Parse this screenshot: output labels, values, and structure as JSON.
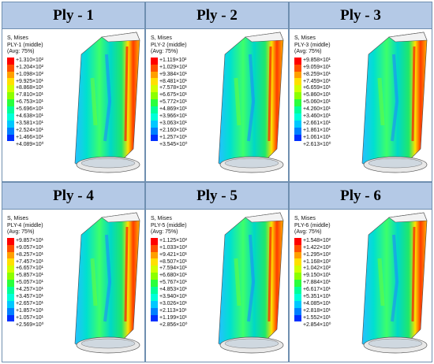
{
  "colormap": [
    "#ff0000",
    "#ff4f00",
    "#ff9f00",
    "#ffe000",
    "#d2ff00",
    "#8cff00",
    "#2aff3d",
    "#00ff9a",
    "#00ffd9",
    "#00c8ff",
    "#0080ff",
    "#0030ff"
  ],
  "legend_header": [
    "S, Mises",
    "(Avg: 75%)"
  ],
  "panels": [
    {
      "title": "Ply - 1",
      "ply_label": "PLY-1 (middle)",
      "levels": [
        "+1.310×10²",
        "+1.204×10²",
        "+1.098×10²",
        "+9.925×10¹",
        "+8.868×10¹",
        "+7.810×10¹",
        "+6.753×10¹",
        "+5.696×10¹",
        "+4.638×10¹",
        "+3.581×10¹",
        "+2.524×10¹",
        "+1.466×10¹",
        "+4.089×10⁰"
      ]
    },
    {
      "title": "Ply - 2",
      "ply_label": "PLY-2 (middle)",
      "levels": [
        "+1.119×10²",
        "+1.029×10²",
        "+9.384×10¹",
        "+8.481×10¹",
        "+7.578×10¹",
        "+6.675×10¹",
        "+5.772×10¹",
        "+4.869×10¹",
        "+3.966×10¹",
        "+3.063×10¹",
        "+2.160×10¹",
        "+1.257×10¹",
        "+3.545×10⁰"
      ]
    },
    {
      "title": "Ply - 3",
      "ply_label": "PLY-3 (middle)",
      "levels": [
        "+9.858×10¹",
        "+9.059×10¹",
        "+8.259×10¹",
        "+7.459×10¹",
        "+6.659×10¹",
        "+5.860×10¹",
        "+5.060×10¹",
        "+4.260×10¹",
        "+3.460×10¹",
        "+2.661×10¹",
        "+1.861×10¹",
        "+1.061×10¹",
        "+2.613×10⁰"
      ]
    },
    {
      "title": "Ply - 4",
      "ply_label": "PLY-4 (middle)",
      "levels": [
        "+9.857×10¹",
        "+9.057×10¹",
        "+8.257×10¹",
        "+7.457×10¹",
        "+6.657×10¹",
        "+5.857×10¹",
        "+5.057×10¹",
        "+4.257×10¹",
        "+3.457×10¹",
        "+2.657×10¹",
        "+1.857×10¹",
        "+1.057×10¹",
        "+2.569×10⁰"
      ]
    },
    {
      "title": "Ply - 5",
      "ply_label": "PLY-5 (middle)",
      "levels": [
        "+1.125×10²",
        "+1.033×10²",
        "+9.421×10¹",
        "+8.507×10¹",
        "+7.594×10¹",
        "+6.680×10¹",
        "+5.767×10¹",
        "+4.853×10¹",
        "+3.940×10¹",
        "+3.026×10¹",
        "+2.113×10¹",
        "+1.199×10¹",
        "+2.856×10⁰"
      ]
    },
    {
      "title": "Ply - 6",
      "ply_label": "PLY-6 (middle)",
      "levels": [
        "+1.548×10²",
        "+1.422×10²",
        "+1.295×10²",
        "+1.168×10²",
        "+1.042×10²",
        "+9.150×10¹",
        "+7.884×10¹",
        "+6.617×10¹",
        "+5.351×10¹",
        "+4.085×10¹",
        "+2.818×10¹",
        "+1.552×10¹",
        "+2.854×10⁰"
      ]
    }
  ]
}
